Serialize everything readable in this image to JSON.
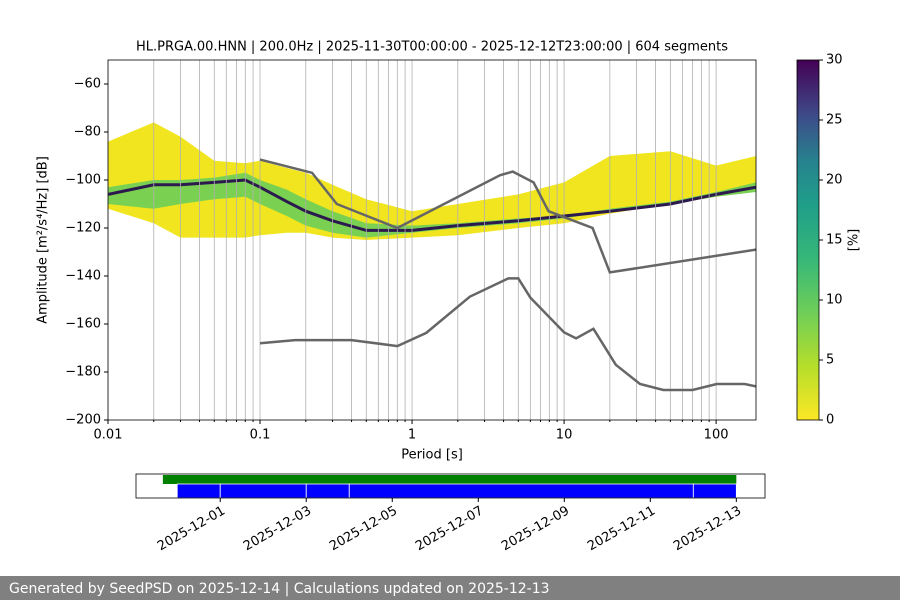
{
  "chart_data": {
    "type": "ppsd",
    "title": "HL.PRGA.00.HNN | 200.0Hz | 2025-11-30T00:00:00 - 2025-12-12T23:00:00 | 604 segments",
    "x_label": "Period [s]",
    "y_label": "Amplitude [m²/s⁴/Hz] [dB]",
    "log_x": true,
    "grid": "x",
    "xlim": [
      0.01,
      183
    ],
    "xticks": [
      0.01,
      0.1,
      1,
      10,
      100
    ],
    "xminorticks": [
      0.02,
      0.03,
      0.04,
      0.05,
      0.06,
      0.07,
      0.08,
      0.09,
      0.2,
      0.3,
      0.4,
      0.5,
      0.6,
      0.7,
      0.8,
      0.9,
      2,
      3,
      4,
      5,
      6,
      7,
      8,
      9,
      20,
      30,
      40,
      50,
      60,
      70,
      80,
      90
    ],
    "ylim": [
      -200,
      -50
    ],
    "yticks": [
      {
        "value": -200,
        "label": "−200"
      },
      {
        "value": -180,
        "label": "−180"
      },
      {
        "value": -160,
        "label": "−160"
      },
      {
        "value": -140,
        "label": "−140"
      },
      {
        "value": -120,
        "label": "−120"
      },
      {
        "value": -100,
        "label": "−100"
      },
      {
        "value": -80,
        "label": "−80"
      },
      {
        "value": -60,
        "label": "−60"
      }
    ],
    "periods": [
      0.01,
      0.02,
      0.03,
      0.05,
      0.08,
      0.1,
      0.15,
      0.2,
      0.3,
      0.5,
      1,
      2,
      5,
      10,
      20,
      50,
      100,
      183
    ],
    "bands": [
      {
        "color": "#f0e51f",
        "upper": [
          -84,
          -76,
          -82,
          -92,
          -93,
          -92,
          -95,
          -97,
          -102,
          -108,
          -113,
          -110,
          -106,
          -101,
          -90,
          -88,
          -94,
          -90
        ],
        "lower": [
          -112,
          -118,
          -124,
          -124,
          -124,
          -123,
          -122,
          -122,
          -124,
          -125,
          -124,
          -123,
          -120,
          -118,
          -114,
          -110,
          -107,
          -104
        ]
      },
      {
        "color": "#7ad151",
        "upper": [
          -103,
          -100,
          -100,
          -99,
          -97,
          -100,
          -104,
          -108,
          -113,
          -118,
          -119,
          -118,
          -116,
          -115,
          -112,
          -109,
          -105,
          -101
        ],
        "lower": [
          -110,
          -112,
          -110,
          -108,
          -107,
          -110,
          -115,
          -119,
          -122,
          -124,
          -122,
          -120,
          -118,
          -116,
          -113,
          -110,
          -107,
          -105
        ]
      }
    ],
    "mode": {
      "color": "#2c1a4f",
      "values": [
        -106,
        -102,
        -102,
        -101,
        -100,
        -103,
        -109,
        -113,
        -117,
        -121,
        -121,
        -119,
        -117,
        -115,
        -113,
        -110,
        -106,
        -103
      ]
    },
    "series": [
      {
        "color": "#666666",
        "x": [
          0.1,
          0.22,
          0.32,
          0.8,
          3.8,
          4.6,
          6.3,
          7.9,
          15.4,
          20,
          183
        ],
        "values": [
          -91.5,
          -97,
          -110,
          -120,
          -98,
          -96.5,
          -101,
          -113,
          -120,
          -138.5,
          -129
        ]
      },
      {
        "color": "#666666",
        "x": [
          0.1,
          0.17,
          0.4,
          0.8,
          1.24,
          2.4,
          4.3,
          5,
          6,
          10,
          12,
          15.6,
          21.9,
          31.6,
          45,
          70,
          101,
          154,
          183
        ],
        "values": [
          -168,
          -166.7,
          -166.7,
          -169.2,
          -163.7,
          -148.6,
          -141,
          -141,
          -149,
          -163.5,
          -166,
          -162,
          -177,
          -185,
          -187.5,
          -187.5,
          -185,
          -185,
          -186
        ]
      }
    ],
    "colorbar": {
      "lim": [
        0,
        30
      ],
      "ticks": [
        0,
        5,
        10,
        15,
        20,
        25,
        30
      ],
      "label": "[%]"
    },
    "timeline": {
      "xlim": [
        "2025-11-29T01:00",
        "2025-12-13T16:00"
      ],
      "xticks": [
        "2025-12-01",
        "2025-12-03",
        "2025-12-05",
        "2025-12-07",
        "2025-12-09",
        "2025-12-11",
        "2025-12-13"
      ],
      "bars": [
        {
          "color": "#008000",
          "segments": [
            [
              "2025-11-29T16:00",
              "2025-12-13T00:00"
            ]
          ]
        },
        {
          "color": "#0000ff",
          "segments": [
            [
              "2025-11-30T00:00",
              "2025-12-01T00:00"
            ],
            [
              "2025-12-01T00:00",
              "2025-12-03T00:00"
            ],
            [
              "2025-12-03T00:00",
              "2025-12-04T00:00"
            ],
            [
              "2025-12-04T00:00",
              "2025-12-12T00:00"
            ],
            [
              "2025-12-12T00:00",
              "2025-12-13T00:00"
            ]
          ]
        }
      ]
    },
    "footer": "Generated by SeedPSD on 2025-12-14 | Calculations updated on 2025-12-13"
  }
}
